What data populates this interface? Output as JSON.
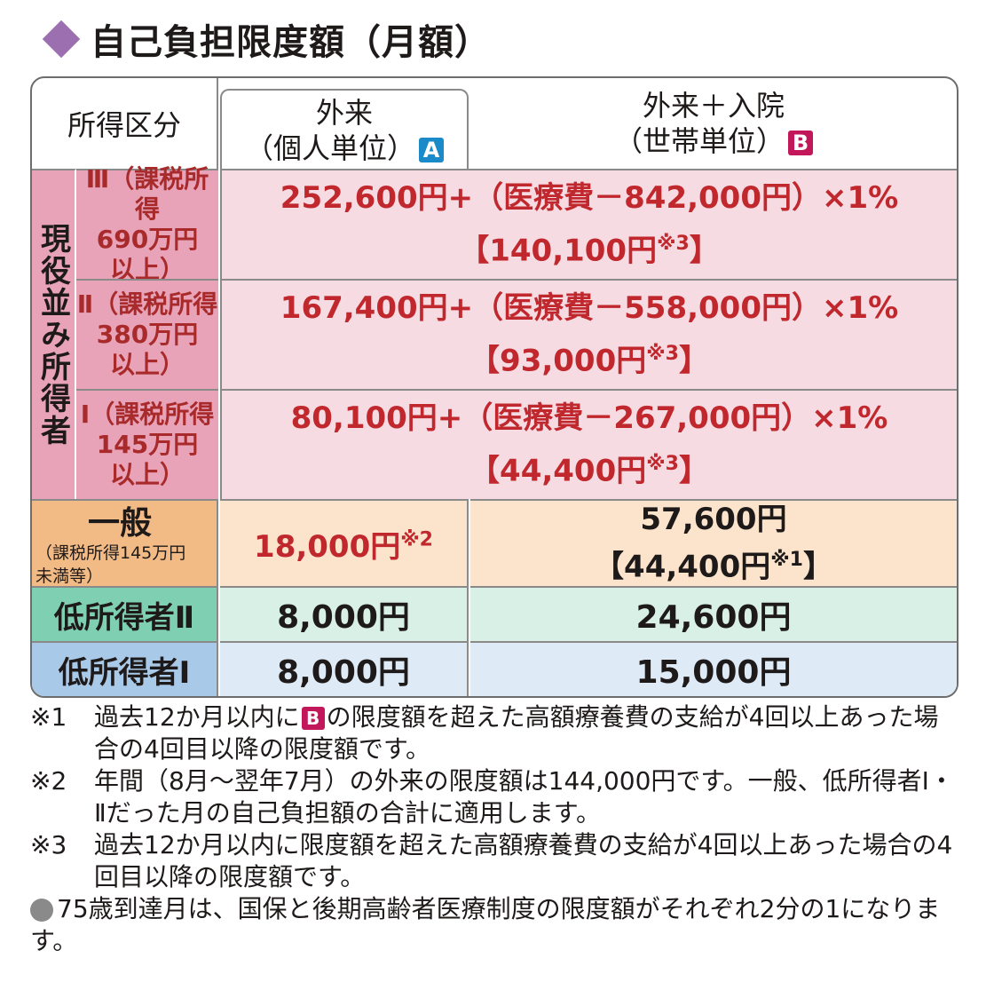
{
  "title": "自己負担限度額（月額）",
  "header": {
    "label": "所得区分",
    "a_line1": "外来",
    "a_line2": "（個人単位）",
    "a_badge": "A",
    "b_line1": "外来＋入院",
    "b_line2": "（世帯単位）",
    "b_badge": "B"
  },
  "genyaku_label": "現役並み所得者",
  "rows": [
    {
      "sub_line1": "Ⅲ（課税所得",
      "sub_line2": "690万円",
      "sub_line3": "以上）",
      "value": "252,600円+（医療費－842,000円）×1%",
      "bracket": "【140,100円",
      "note_mark": "※3",
      "bracket_end": "】"
    },
    {
      "sub_line1": "Ⅱ（課税所得",
      "sub_line2": "380万円",
      "sub_line3": "以上）",
      "value": "167,400円+（医療費－558,000円）×1%",
      "bracket": "【93,000円",
      "note_mark": "※3",
      "bracket_end": "】"
    },
    {
      "sub_line1": "Ⅰ（課税所得",
      "sub_line2": "145万円",
      "sub_line3": "以上）",
      "value": "80,100円+（医療費－267,000円）×1%",
      "bracket": "【44,400円",
      "note_mark": "※3",
      "bracket_end": "】"
    }
  ],
  "ippan": {
    "label": "一般",
    "sublabel1": "（課税所得145万円",
    "sublabel2": "未満等）",
    "a_value": "18,000円",
    "a_note": "※2",
    "b_value": "57,600円",
    "b_bracket": "【44,400円",
    "b_note": "※1",
    "b_bracket_end": "】"
  },
  "low2": {
    "label": "低所得者Ⅱ",
    "a_value": "8,000円",
    "b_value": "24,600円"
  },
  "low1": {
    "label": "低所得者Ⅰ",
    "a_value": "8,000円",
    "b_value": "15,000円"
  },
  "notes": [
    {
      "mark": "※1",
      "pre": "過去12か月以内に",
      "badge": "B",
      "post": "の限度額を超えた高額療養費の支給が4回以上あった場合の4回目以降の限度額です。"
    },
    {
      "mark": "※2",
      "text": "年間（8月～翌年7月）の外来の限度額は144,000円です。一般、低所得者Ⅰ・Ⅱだった月の自己負担額の合計に適用します。"
    },
    {
      "mark": "※3",
      "text": "過去12か月以内に限度額を超えた高額療養費の支給が4回以上あった場合の4回目以降の限度額です。"
    }
  ],
  "bullet": "75歳到達月は、国保と後期高齢者医療制度の限度額がそれぞれ2分の1になります。",
  "colors": {
    "diamond": "#9b6fb0",
    "badge_a": "#1b8ac8",
    "badge_b": "#c2185b",
    "genyaku_bg": "#e8a3b8",
    "genyaku_values_bg": "#f6dbe3",
    "ippan_bg": "#f2bb86",
    "low2_bg": "#7fd0b2",
    "low1_bg": "#a9c9e8",
    "value_red": "#c0282d"
  }
}
